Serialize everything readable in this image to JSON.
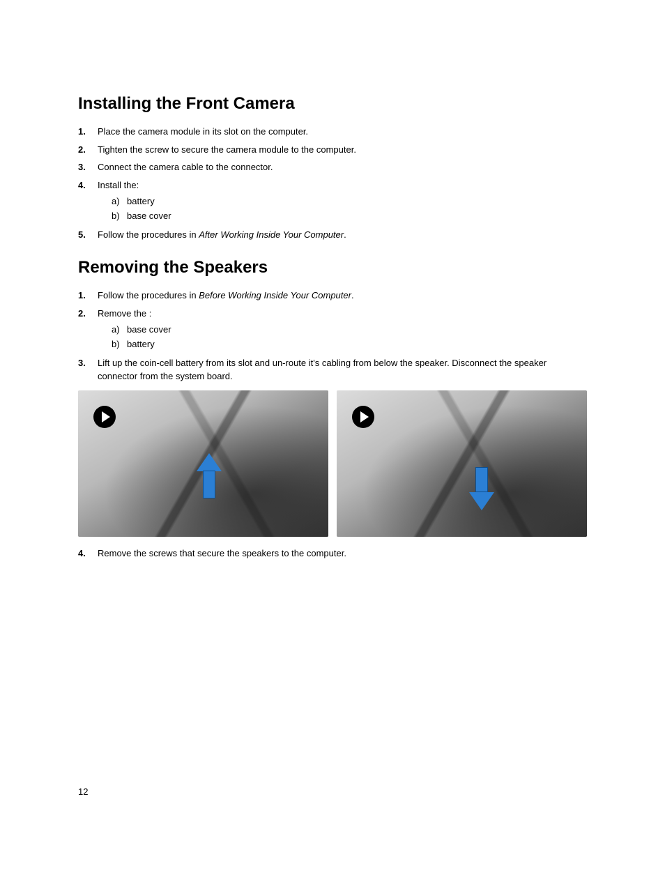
{
  "page_number": "12",
  "section1": {
    "heading": "Installing the Front Camera",
    "steps": [
      {
        "n": "1.",
        "text": "Place the camera module in its slot on the computer."
      },
      {
        "n": "2.",
        "text": "Tighten the screw to secure the camera module to the computer."
      },
      {
        "n": "3.",
        "text": "Connect the camera cable to the connector."
      },
      {
        "n": "4.",
        "text": "Install the:",
        "sub": [
          {
            "sn": "a)",
            "t": "battery"
          },
          {
            "sn": "b)",
            "t": "base cover"
          }
        ]
      },
      {
        "n": "5.",
        "pre": "Follow the procedures in ",
        "italic": "After Working Inside Your Computer",
        "post": "."
      }
    ]
  },
  "section2": {
    "heading": "Removing the Speakers",
    "steps": [
      {
        "n": "1.",
        "pre": "Follow the procedures in ",
        "italic": "Before Working Inside Your Computer",
        "post": "."
      },
      {
        "n": "2.",
        "text": "Remove the :",
        "sub": [
          {
            "sn": "a)",
            "t": "base cover"
          },
          {
            "sn": "b)",
            "t": "battery"
          }
        ]
      },
      {
        "n": "3.",
        "text": "Lift up the coin-cell battery from its slot and un-route it's cabling from below the speaker. Disconnect the speaker connector from the system board."
      },
      {
        "n": "4.",
        "text": "Remove the screws that secure the speakers to the computer."
      }
    ]
  },
  "figure": {
    "arrow_color": "#2b7fd4",
    "play_icon_bg": "#000000",
    "play_icon_fg": "#ffffff"
  }
}
